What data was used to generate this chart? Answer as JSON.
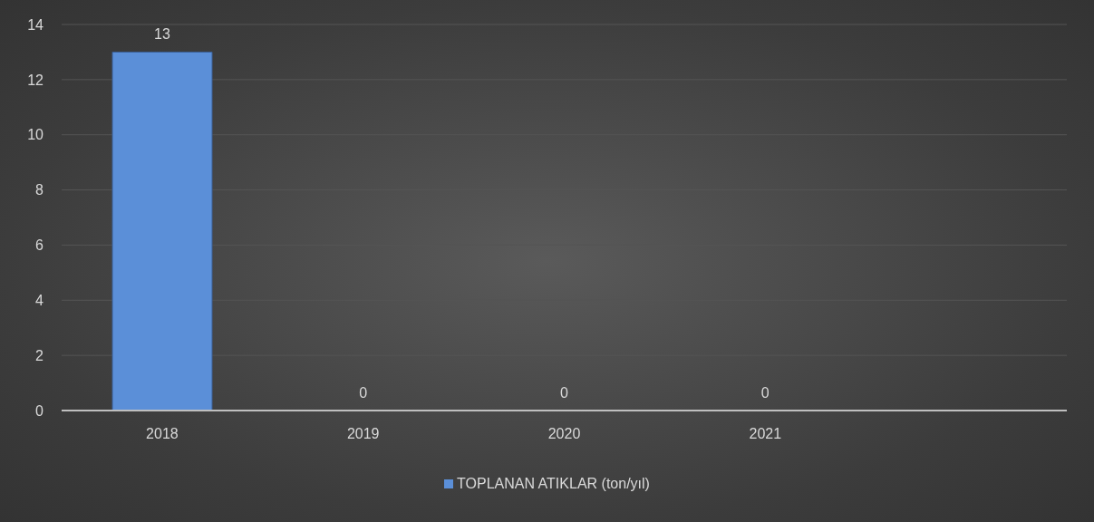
{
  "chart_data": {
    "type": "bar",
    "categories": [
      "2018",
      "2019",
      "2020",
      "2021",
      null
    ],
    "series": [
      {
        "name": "TOPLANAN ATIKLAR (ton/yıl)",
        "color": "#5b8fd8",
        "values": [
          13,
          0,
          0,
          0,
          null
        ]
      }
    ],
    "ylim": [
      0,
      14
    ],
    "yticks": [
      0,
      2,
      4,
      6,
      8,
      10,
      12,
      14
    ],
    "grid": "y",
    "legend": "bottom",
    "data_labels": true
  }
}
